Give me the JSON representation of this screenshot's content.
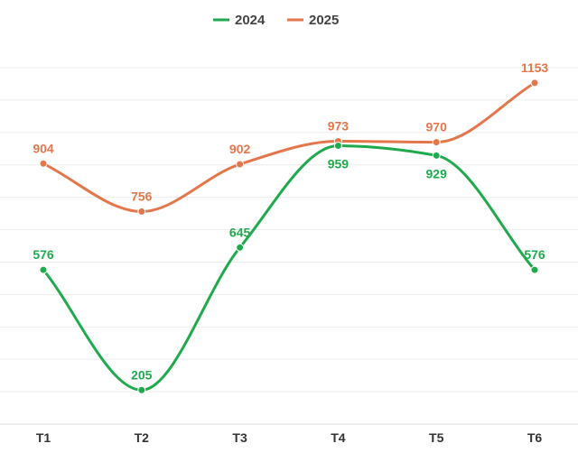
{
  "chart_data": {
    "type": "line",
    "title": "",
    "xlabel": "",
    "ylabel": "",
    "categories": [
      "T1",
      "T2",
      "T3",
      "T4",
      "T5",
      "T6"
    ],
    "ylim": [
      100,
      1200
    ],
    "grid": true,
    "grid_step": 100,
    "legend_position": "top-center",
    "smooth": true,
    "series": [
      {
        "name": "2024",
        "color": "#1faa4e",
        "values": [
          576,
          205,
          645,
          959,
          929,
          576
        ],
        "label_position": [
          "above",
          "above",
          "above",
          "below",
          "below",
          "above"
        ]
      },
      {
        "name": "2025",
        "color": "#e3774b",
        "values": [
          904,
          756,
          902,
          973,
          970,
          1153
        ],
        "label_position": [
          "above",
          "above",
          "above",
          "above",
          "above",
          "above"
        ]
      }
    ]
  }
}
